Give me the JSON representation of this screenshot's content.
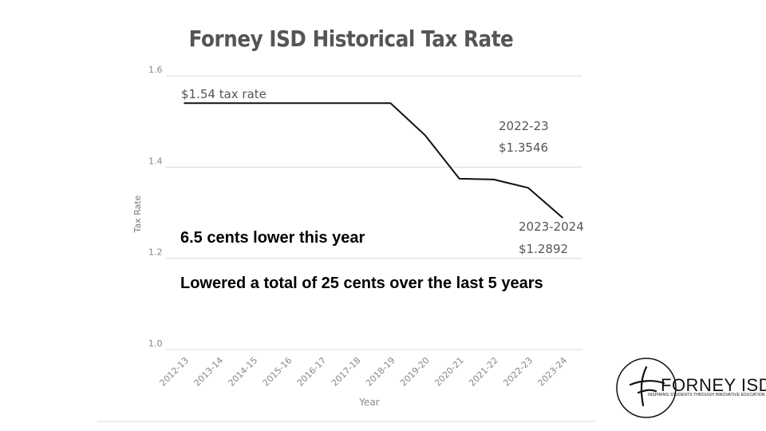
{
  "chart_data": {
    "type": "line",
    "title": "Forney ISD Historical Tax Rate",
    "xlabel": "Year",
    "ylabel": "Tax Rate",
    "ylim": [
      1.0,
      1.6
    ],
    "yticks": [
      "1.0",
      "1.2",
      "1.4",
      "1.6"
    ],
    "grid": true,
    "categories": [
      "2012-13",
      "2013-14",
      "2014-15",
      "2015-16",
      "2016-17",
      "2017-18",
      "2018-19",
      "2019-20",
      "2020-21",
      "2021-22",
      "2022-23",
      "2023-24"
    ],
    "series": [
      {
        "values": [
          1.54,
          1.54,
          1.54,
          1.54,
          1.54,
          1.54,
          1.54,
          1.47,
          1.3746,
          1.3728,
          1.3546,
          1.2892
        ]
      }
    ],
    "annotations": [
      {
        "text": "$1.54 tax rate"
      },
      {
        "line1": "2022-23",
        "line2": "$1.3546"
      },
      {
        "line1": "2023-2024",
        "line2": "$1.2892"
      }
    ],
    "line_color": "#111111",
    "grid_color": "#d9d9d9"
  },
  "callouts": {
    "line1": "6.5 cents lower this year",
    "line2": "Lowered a total of 25 cents over the last 5 years"
  },
  "logo": {
    "name": "FORNEY ISD",
    "tagline": "INSPIRING STUDENTS THROUGH INNOVATIVE EDUCATION"
  }
}
